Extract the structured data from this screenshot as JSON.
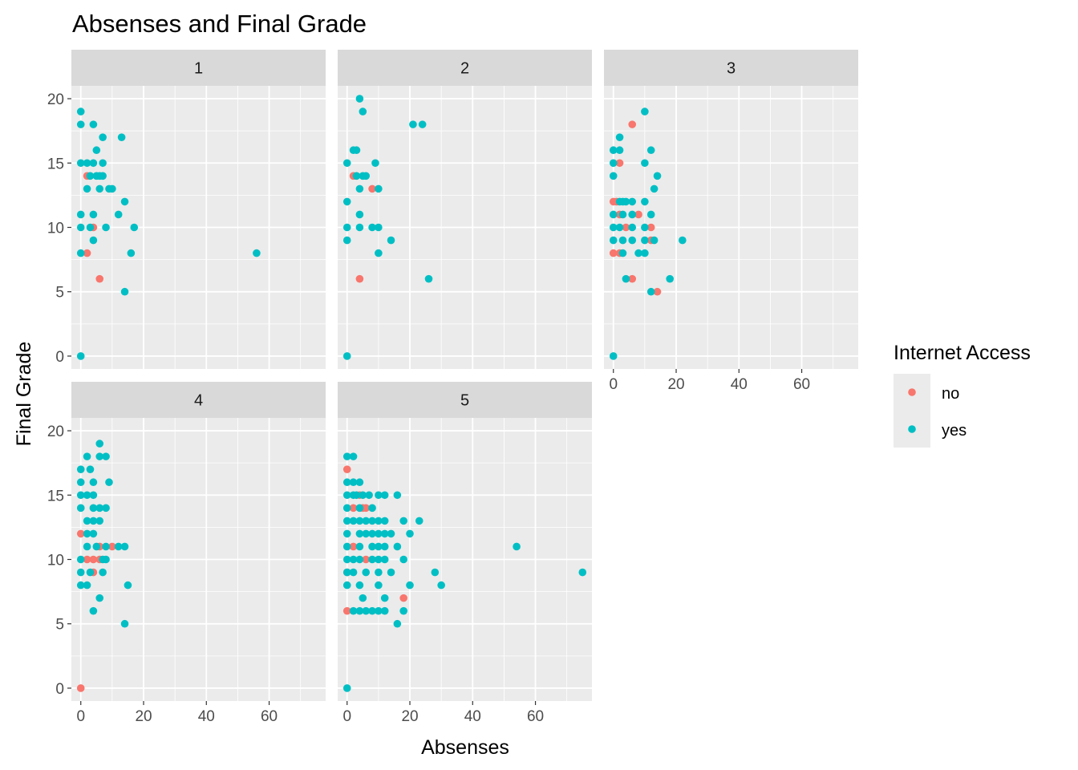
{
  "chart_data": {
    "type": "scatter",
    "title": "Absenses and Final Grade",
    "xlabel": "Absenses",
    "ylabel": "Final Grade",
    "xlim": [
      -3,
      78
    ],
    "ylim": [
      -1,
      21
    ],
    "xticks": [
      0,
      20,
      40,
      60
    ],
    "yticks": [
      0,
      5,
      10,
      15,
      20
    ],
    "grid": true,
    "legend": {
      "title": "Internet Access",
      "position": "right",
      "entries": [
        {
          "label": "no",
          "color": "#F8766D"
        },
        {
          "label": "yes",
          "color": "#00BFC4"
        }
      ]
    },
    "panels": [
      {
        "label": "1",
        "no": [
          [
            2,
            14
          ],
          [
            4,
            10
          ],
          [
            2,
            8
          ],
          [
            6,
            6
          ]
        ],
        "yes": [
          [
            0,
            19
          ],
          [
            0,
            18
          ],
          [
            4,
            18
          ],
          [
            13,
            17
          ],
          [
            7,
            17
          ],
          [
            5,
            16
          ],
          [
            0,
            15
          ],
          [
            2,
            15
          ],
          [
            4,
            15
          ],
          [
            7,
            15
          ],
          [
            3,
            14
          ],
          [
            5,
            14
          ],
          [
            6,
            14
          ],
          [
            7,
            14
          ],
          [
            2,
            13
          ],
          [
            6,
            13
          ],
          [
            9,
            13
          ],
          [
            10,
            13
          ],
          [
            14,
            12
          ],
          [
            0,
            11
          ],
          [
            4,
            11
          ],
          [
            12,
            11
          ],
          [
            0,
            10
          ],
          [
            3,
            10
          ],
          [
            8,
            10
          ],
          [
            17,
            10
          ],
          [
            4,
            9
          ],
          [
            0,
            8
          ],
          [
            16,
            8
          ],
          [
            56,
            8
          ],
          [
            14,
            5
          ],
          [
            0,
            0
          ]
        ]
      },
      {
        "label": "2",
        "no": [
          [
            2,
            14
          ],
          [
            8,
            13
          ],
          [
            4,
            6
          ]
        ],
        "yes": [
          [
            4,
            20
          ],
          [
            5,
            19
          ],
          [
            21,
            18
          ],
          [
            24,
            18
          ],
          [
            2,
            16
          ],
          [
            3,
            16
          ],
          [
            0,
            15
          ],
          [
            9,
            15
          ],
          [
            3,
            14
          ],
          [
            5,
            14
          ],
          [
            6,
            14
          ],
          [
            4,
            13
          ],
          [
            10,
            13
          ],
          [
            0,
            12
          ],
          [
            4,
            11
          ],
          [
            0,
            10
          ],
          [
            4,
            10
          ],
          [
            8,
            10
          ],
          [
            10,
            10
          ],
          [
            0,
            9
          ],
          [
            14,
            9
          ],
          [
            10,
            8
          ],
          [
            26,
            6
          ],
          [
            0,
            0
          ]
        ]
      },
      {
        "label": "3",
        "no": [
          [
            6,
            18
          ],
          [
            2,
            15
          ],
          [
            0,
            12
          ],
          [
            1,
            12
          ],
          [
            2,
            11
          ],
          [
            8,
            11
          ],
          [
            4,
            10
          ],
          [
            12,
            10
          ],
          [
            0,
            8
          ],
          [
            2,
            8
          ],
          [
            12,
            9
          ],
          [
            6,
            6
          ],
          [
            14,
            5
          ]
        ],
        "yes": [
          [
            10,
            19
          ],
          [
            2,
            17
          ],
          [
            0,
            16
          ],
          [
            2,
            16
          ],
          [
            12,
            16
          ],
          [
            0,
            15
          ],
          [
            10,
            15
          ],
          [
            0,
            14
          ],
          [
            14,
            14
          ],
          [
            13,
            13
          ],
          [
            2,
            12
          ],
          [
            3,
            12
          ],
          [
            4,
            12
          ],
          [
            6,
            12
          ],
          [
            10,
            12
          ],
          [
            0,
            11
          ],
          [
            3,
            11
          ],
          [
            6,
            11
          ],
          [
            12,
            11
          ],
          [
            0,
            10
          ],
          [
            2,
            10
          ],
          [
            6,
            10
          ],
          [
            10,
            10
          ],
          [
            0,
            9
          ],
          [
            3,
            9
          ],
          [
            6,
            9
          ],
          [
            10,
            9
          ],
          [
            13,
            9
          ],
          [
            22,
            9
          ],
          [
            3,
            8
          ],
          [
            8,
            8
          ],
          [
            10,
            8
          ],
          [
            4,
            6
          ],
          [
            18,
            6
          ],
          [
            12,
            5
          ],
          [
            0,
            0
          ]
        ]
      },
      {
        "label": "4",
        "no": [
          [
            0,
            12
          ],
          [
            6,
            11
          ],
          [
            10,
            11
          ],
          [
            2,
            10
          ],
          [
            4,
            10
          ],
          [
            6,
            10
          ],
          [
            4,
            9
          ],
          [
            0,
            0
          ]
        ],
        "yes": [
          [
            6,
            19
          ],
          [
            2,
            18
          ],
          [
            6,
            18
          ],
          [
            8,
            18
          ],
          [
            0,
            17
          ],
          [
            3,
            17
          ],
          [
            0,
            16
          ],
          [
            4,
            16
          ],
          [
            9,
            16
          ],
          [
            0,
            15
          ],
          [
            2,
            15
          ],
          [
            4,
            15
          ],
          [
            0,
            14
          ],
          [
            4,
            14
          ],
          [
            6,
            14
          ],
          [
            8,
            14
          ],
          [
            2,
            13
          ],
          [
            4,
            13
          ],
          [
            6,
            13
          ],
          [
            2,
            12
          ],
          [
            4,
            12
          ],
          [
            2,
            11
          ],
          [
            5,
            11
          ],
          [
            8,
            11
          ],
          [
            12,
            11
          ],
          [
            14,
            11
          ],
          [
            0,
            10
          ],
          [
            7,
            10
          ],
          [
            8,
            10
          ],
          [
            0,
            9
          ],
          [
            3,
            9
          ],
          [
            7,
            9
          ],
          [
            0,
            8
          ],
          [
            2,
            8
          ],
          [
            15,
            8
          ],
          [
            6,
            7
          ],
          [
            4,
            6
          ],
          [
            14,
            5
          ]
        ]
      },
      {
        "label": "5",
        "no": [
          [
            0,
            17
          ],
          [
            4,
            15
          ],
          [
            5,
            14
          ],
          [
            6,
            14
          ],
          [
            2,
            14
          ],
          [
            2,
            11
          ],
          [
            6,
            10
          ],
          [
            0,
            9
          ],
          [
            18,
            7
          ],
          [
            0,
            6
          ]
        ],
        "yes": [
          [
            0,
            18
          ],
          [
            2,
            18
          ],
          [
            0,
            16
          ],
          [
            2,
            16
          ],
          [
            4,
            16
          ],
          [
            0,
            15
          ],
          [
            2,
            15
          ],
          [
            3,
            15
          ],
          [
            5,
            15
          ],
          [
            7,
            15
          ],
          [
            10,
            15
          ],
          [
            12,
            15
          ],
          [
            16,
            15
          ],
          [
            0,
            14
          ],
          [
            4,
            14
          ],
          [
            8,
            14
          ],
          [
            0,
            13
          ],
          [
            2,
            13
          ],
          [
            4,
            13
          ],
          [
            6,
            13
          ],
          [
            8,
            13
          ],
          [
            10,
            13
          ],
          [
            12,
            13
          ],
          [
            18,
            13
          ],
          [
            23,
            13
          ],
          [
            0,
            12
          ],
          [
            4,
            12
          ],
          [
            6,
            12
          ],
          [
            8,
            12
          ],
          [
            10,
            12
          ],
          [
            12,
            12
          ],
          [
            14,
            12
          ],
          [
            20,
            12
          ],
          [
            0,
            11
          ],
          [
            4,
            11
          ],
          [
            8,
            11
          ],
          [
            10,
            11
          ],
          [
            12,
            11
          ],
          [
            16,
            11
          ],
          [
            54,
            11
          ],
          [
            0,
            10
          ],
          [
            2,
            10
          ],
          [
            4,
            10
          ],
          [
            8,
            10
          ],
          [
            10,
            10
          ],
          [
            12,
            10
          ],
          [
            18,
            10
          ],
          [
            0,
            9
          ],
          [
            2,
            9
          ],
          [
            6,
            9
          ],
          [
            10,
            9
          ],
          [
            14,
            9
          ],
          [
            28,
            9
          ],
          [
            75,
            9
          ],
          [
            0,
            8
          ],
          [
            4,
            8
          ],
          [
            10,
            8
          ],
          [
            20,
            8
          ],
          [
            30,
            8
          ],
          [
            5,
            7
          ],
          [
            12,
            7
          ],
          [
            2,
            6
          ],
          [
            4,
            6
          ],
          [
            6,
            6
          ],
          [
            8,
            6
          ],
          [
            10,
            6
          ],
          [
            12,
            6
          ],
          [
            18,
            6
          ],
          [
            16,
            5
          ],
          [
            0,
            0
          ]
        ]
      }
    ]
  }
}
